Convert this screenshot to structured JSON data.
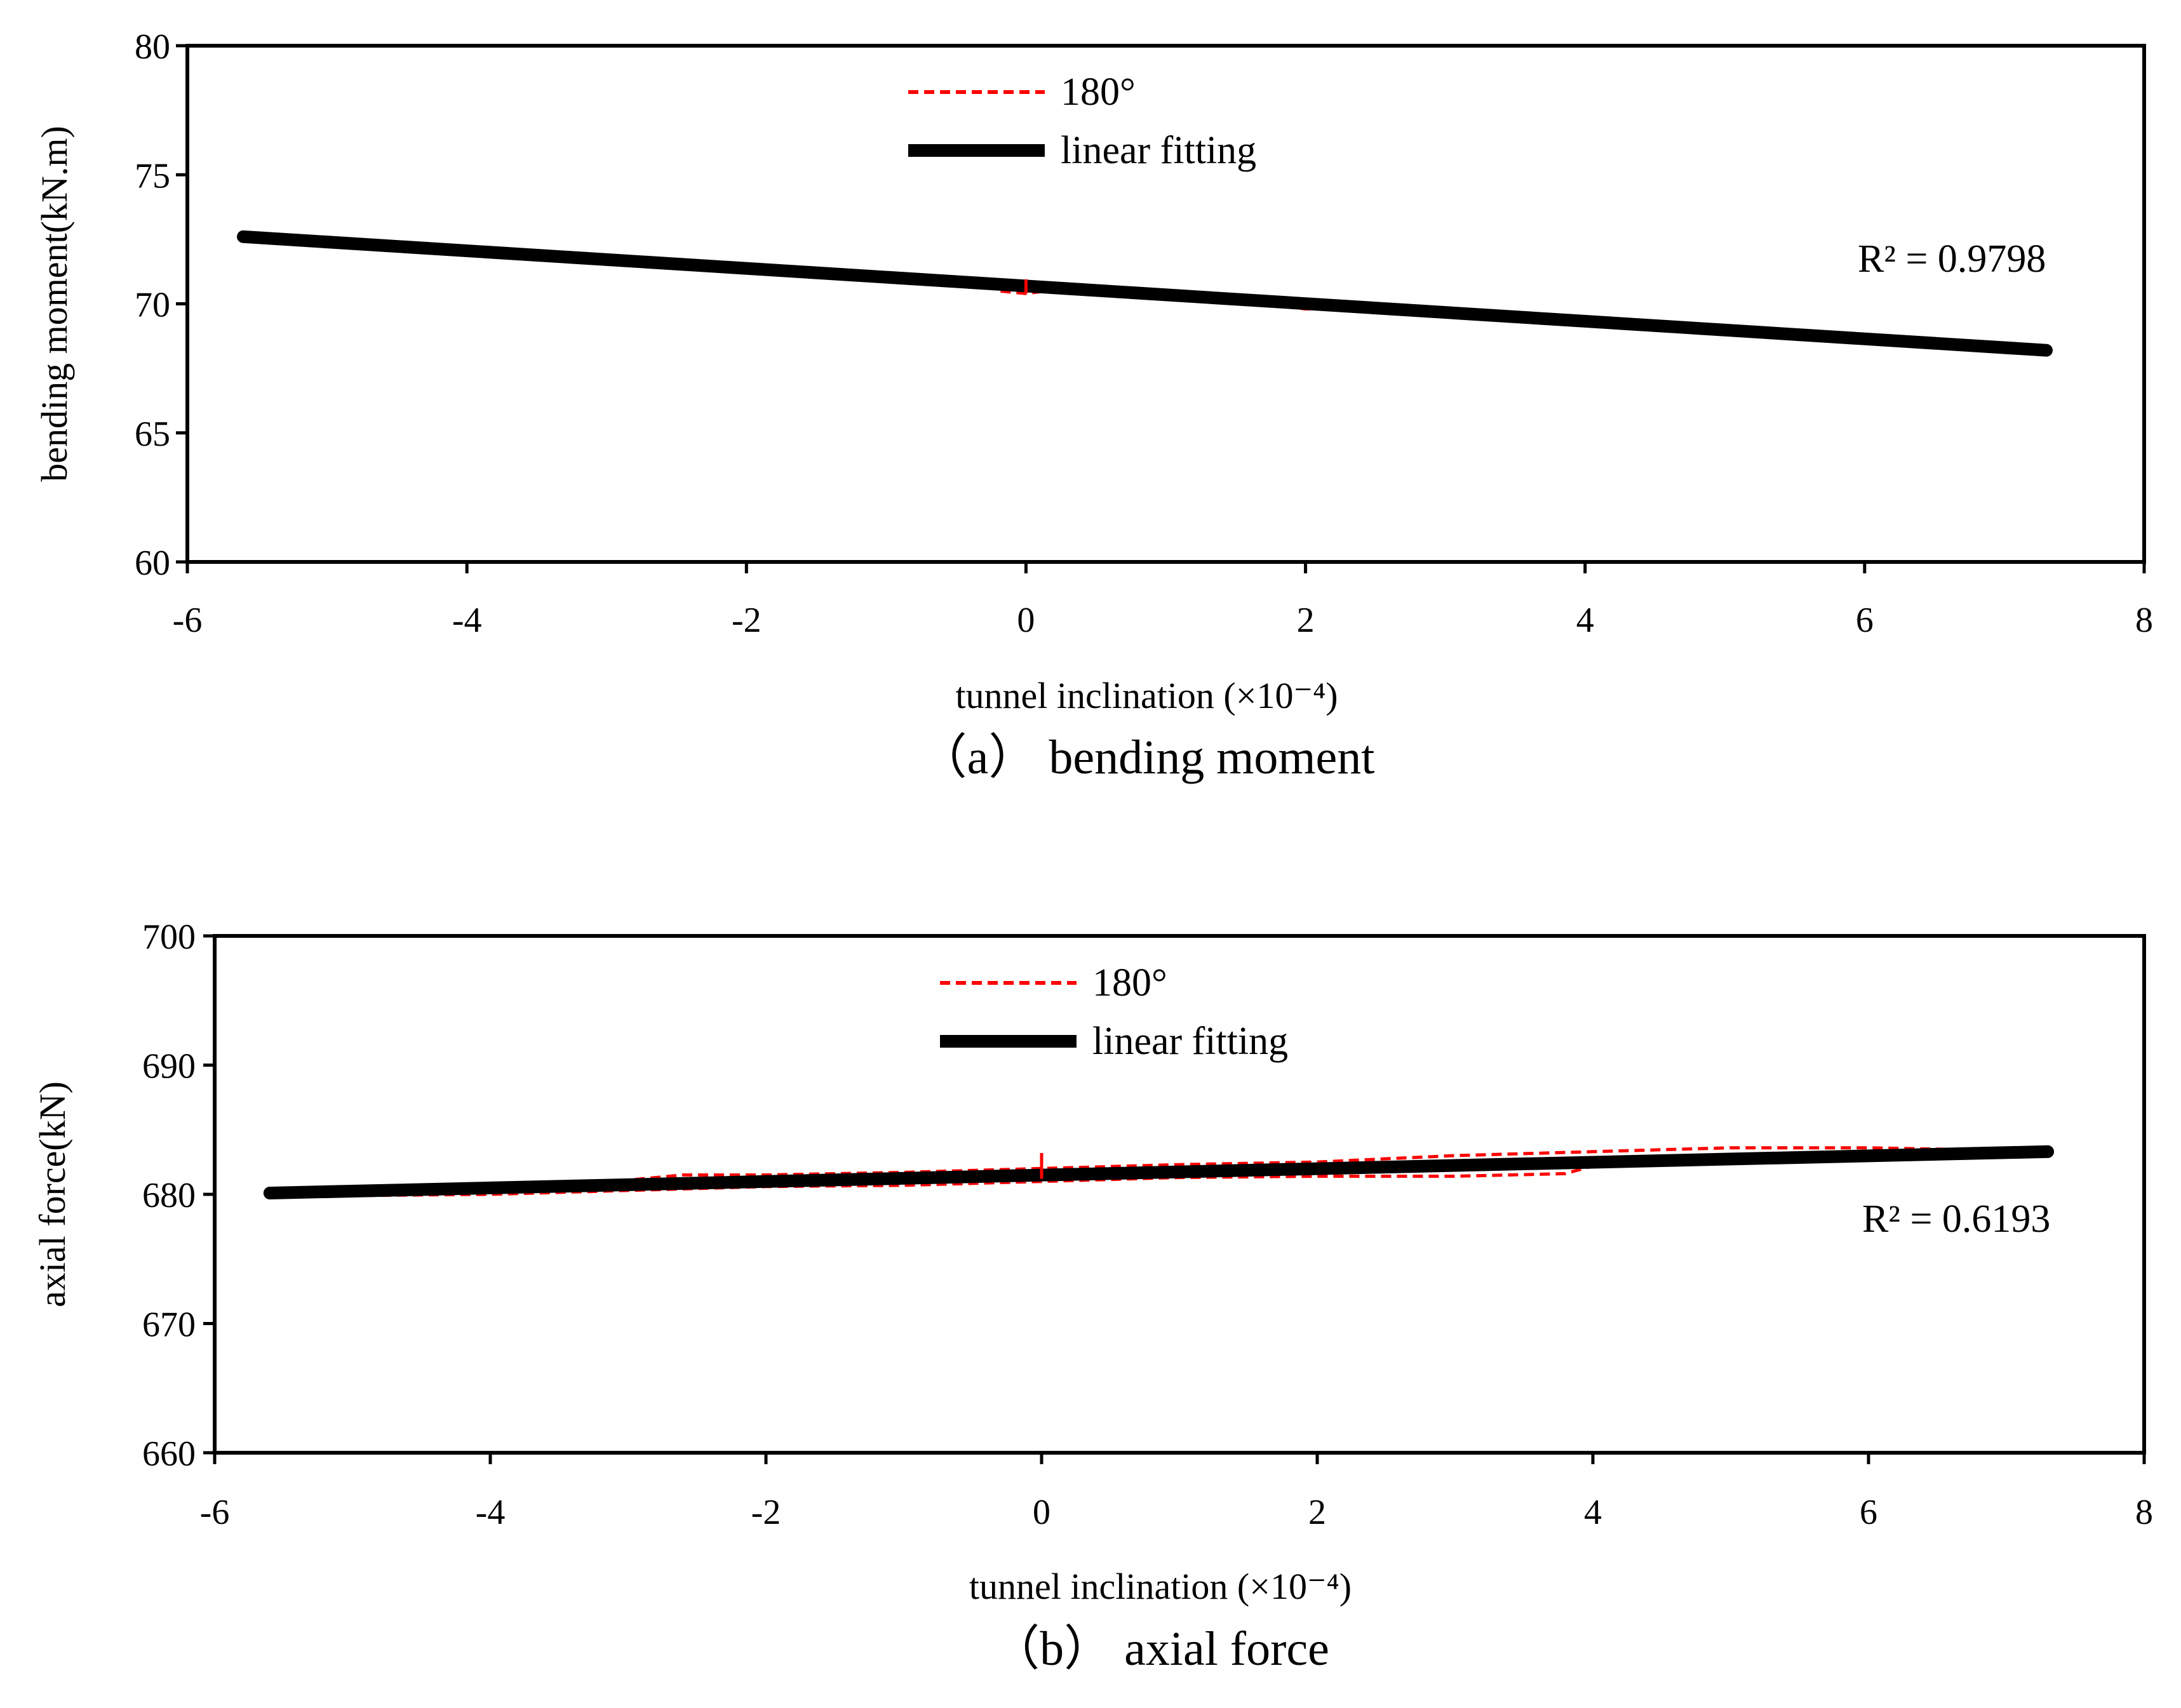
{
  "colors": {
    "measured": "#ff0000",
    "fit": "#000000",
    "frame": "#000000"
  },
  "chart_data": [
    {
      "type": "line",
      "title": "",
      "caption": "（a）  bending moment",
      "xlabel": "tunnel inclination  (×10⁻⁴)",
      "ylabel": "bending moment(kN.m)",
      "xlim": [
        -6,
        8
      ],
      "ylim": [
        60,
        80
      ],
      "xticks": [
        -6,
        -4,
        -2,
        0,
        2,
        4,
        6,
        8
      ],
      "xtick_labels": [
        "-6",
        "-4",
        "-2",
        "0",
        "2",
        "4",
        "6",
        "8"
      ],
      "yticks": [
        60,
        65,
        70,
        75,
        80
      ],
      "ytick_labels": [
        "60",
        "65",
        "70",
        "75",
        "80"
      ],
      "legend": {
        "position": "top-center",
        "entries": [
          "180°",
          "linear fitting"
        ]
      },
      "r2_label": "R² = 0.9798",
      "series": [
        {
          "name": "180°",
          "style": "dashed",
          "x": [
            -5.6,
            -5.0,
            -4.0,
            -3.0,
            -2.0,
            -1.0,
            -0.3,
            -0.2,
            0.0,
            0.3,
            1.0,
            1.5,
            2.0,
            2.6,
            3.0,
            4.0,
            5.0,
            6.0,
            7.3
          ],
          "y": [
            72.6,
            72.5,
            72.1,
            71.8,
            71.5,
            71.1,
            70.9,
            70.5,
            70.4,
            70.6,
            70.5,
            70.2,
            69.8,
            69.9,
            69.7,
            69.3,
            68.9,
            68.6,
            68.3
          ]
        },
        {
          "name": "linear fitting",
          "style": "solid",
          "x": [
            -5.6,
            7.3
          ],
          "y": [
            72.6,
            68.2
          ]
        }
      ]
    },
    {
      "type": "line",
      "title": "",
      "caption": "（b）  axial force",
      "xlabel": "tunnel inclination  (×10⁻⁴)",
      "ylabel": "axial force(kN)",
      "xlim": [
        -6,
        8
      ],
      "ylim": [
        660,
        700
      ],
      "xticks": [
        -6,
        -4,
        -2,
        0,
        2,
        4,
        6,
        8
      ],
      "xtick_labels": [
        "-6",
        "-4",
        "-2",
        "0",
        "2",
        "4",
        "6",
        "8"
      ],
      "yticks": [
        660,
        670,
        680,
        690,
        700
      ],
      "ytick_labels": [
        "660",
        "670",
        "680",
        "690",
        "700"
      ],
      "legend": {
        "position": "top-center",
        "entries": [
          "180°",
          "linear fitting"
        ]
      },
      "r2_label": "R² = 0.6193",
      "series": [
        {
          "name": "180°",
          "style": "dashed",
          "x": [
            -5.6,
            -5.0,
            -4.0,
            -3.0,
            -2.6,
            -2.0,
            -1.0,
            0.0,
            1.0,
            2.0,
            2.6,
            3.0,
            4.0,
            5.0,
            6.0,
            6.5,
            7.3
          ],
          "y": [
            680.0,
            680.3,
            680.7,
            681.1,
            681.5,
            681.5,
            681.7,
            682.0,
            682.3,
            682.5,
            682.8,
            683.0,
            683.3,
            683.6,
            683.6,
            683.5,
            683.4
          ]
        },
        {
          "name": "180°",
          "style": "dashed",
          "x": [
            -5.6,
            -5.0,
            -4.0,
            -3.0,
            -2.0,
            -1.0,
            0.0,
            1.0,
            2.0,
            3.0,
            3.8,
            4.0,
            5.0,
            6.0,
            7.3
          ],
          "y": [
            680.0,
            679.9,
            680.0,
            680.3,
            680.6,
            680.7,
            681.0,
            681.3,
            681.4,
            681.4,
            681.6,
            682.2,
            682.6,
            682.9,
            683.2
          ]
        },
        {
          "name": "linear fitting",
          "style": "solid",
          "x": [
            -5.6,
            7.3
          ],
          "y": [
            680.1,
            683.3
          ]
        }
      ]
    }
  ]
}
